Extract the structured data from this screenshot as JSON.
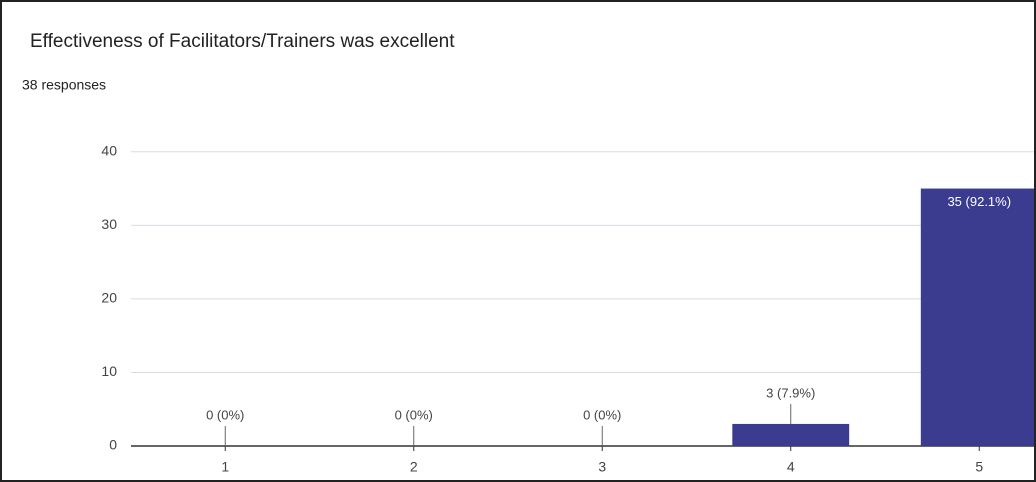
{
  "chart_data": {
    "type": "bar",
    "title": "Effectiveness of Facilitators/Trainers was excellent",
    "subtitle": "38 responses",
    "categories": [
      "1",
      "2",
      "3",
      "4",
      "5"
    ],
    "values": [
      0,
      0,
      0,
      3,
      35
    ],
    "value_labels": [
      "0 (0%)",
      "0 (0%)",
      "0 (0%)",
      "3 (7.9%)",
      "35 (92.1%)"
    ],
    "color": "#3b3b8f",
    "ylim": [
      0,
      45
    ],
    "yticks": [
      0,
      10,
      20,
      30,
      40
    ],
    "grid": true
  }
}
